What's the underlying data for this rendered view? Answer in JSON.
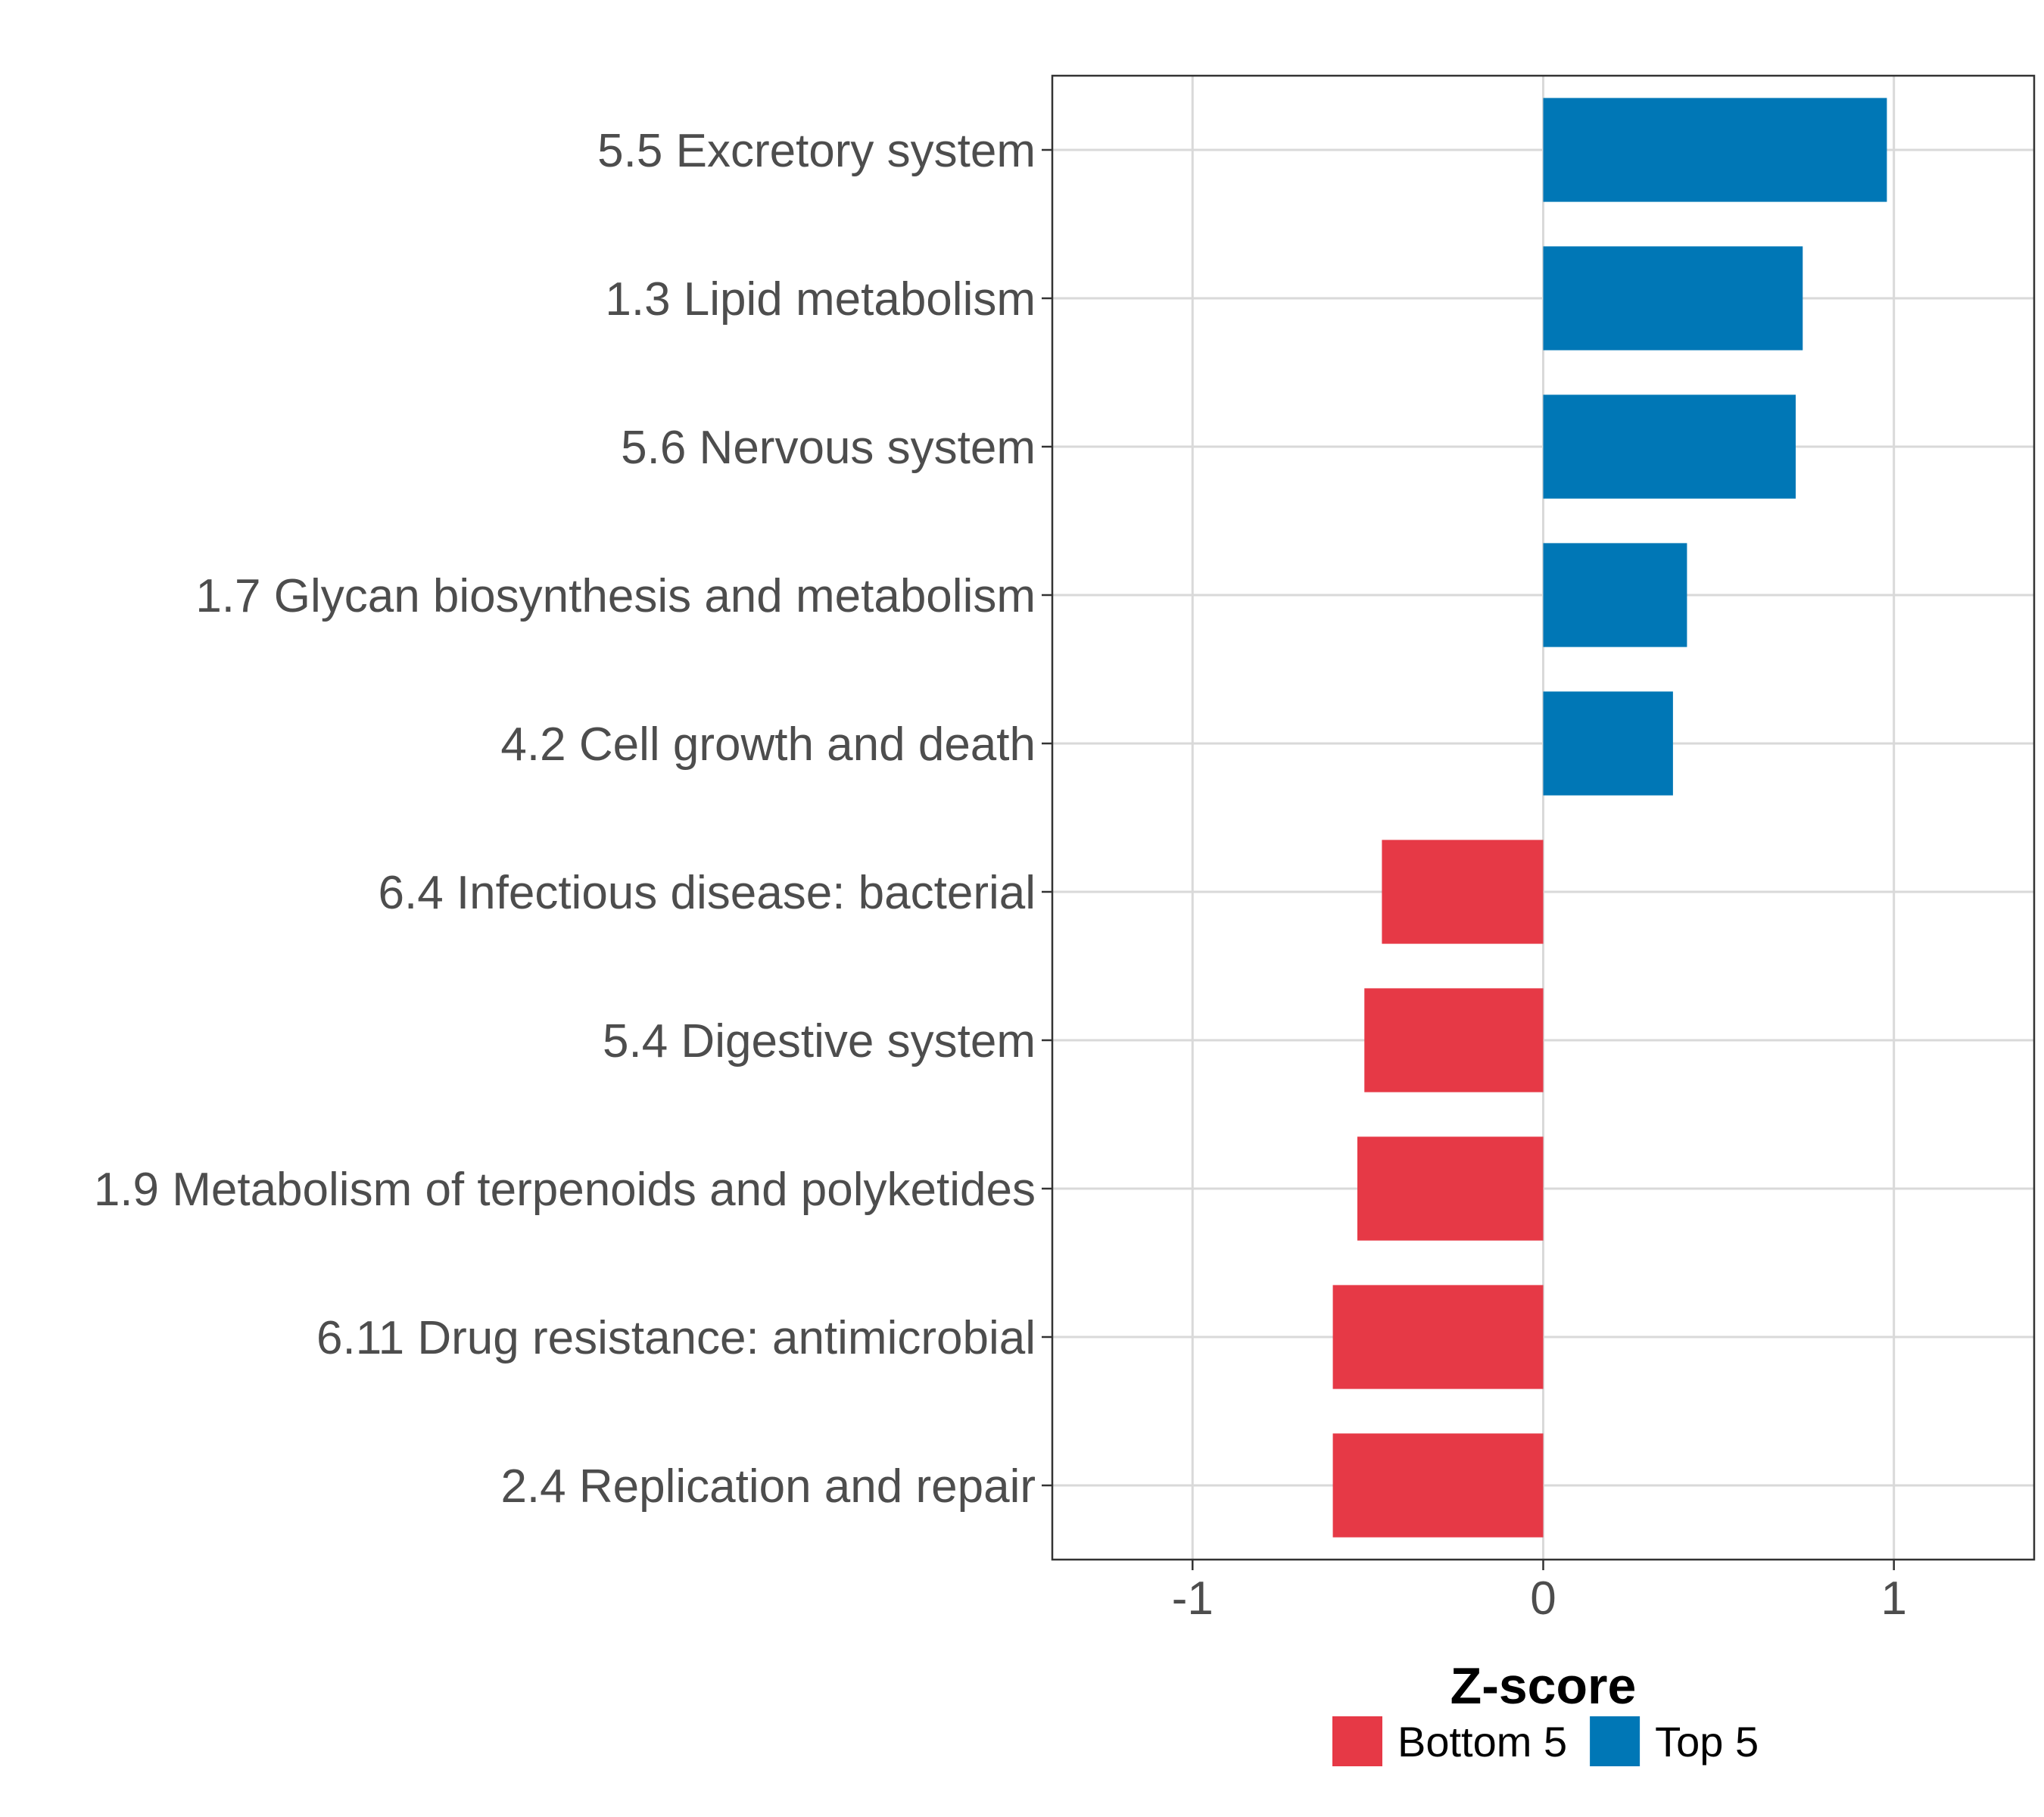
{
  "chart_data": {
    "type": "bar",
    "orientation": "horizontal",
    "title": "",
    "xlabel": "Z-score",
    "ylabel": "",
    "xlim": [
      -1.4,
      1.4
    ],
    "xticks": [
      -1,
      0,
      1
    ],
    "xtick_labels": [
      "-1",
      "0",
      "1"
    ],
    "grid": true,
    "legend_position": "bottom",
    "categories": [
      "5.5 Excretory system",
      "1.3 Lipid metabolism",
      "5.6 Nervous system",
      "1.7 Glycan biosynthesis and metabolism",
      "4.2 Cell growth and death",
      "6.4 Infectious disease: bacterial",
      "5.4 Digestive system",
      "1.9 Metabolism of terpenoids and polyketides",
      "6.11 Drug resistance: antimicrobial",
      "2.4 Replication and repair"
    ],
    "values": [
      0.98,
      0.74,
      0.72,
      0.41,
      0.37,
      -0.46,
      -0.51,
      -0.53,
      -0.6,
      -0.6
    ],
    "groups": [
      "Top 5",
      "Top 5",
      "Top 5",
      "Top 5",
      "Top 5",
      "Bottom 5",
      "Bottom 5",
      "Bottom 5",
      "Bottom 5",
      "Bottom 5"
    ],
    "legend": [
      {
        "name": "Bottom 5",
        "color": "#e63946"
      },
      {
        "name": "Top 5",
        "color": "#0077b6"
      }
    ]
  }
}
